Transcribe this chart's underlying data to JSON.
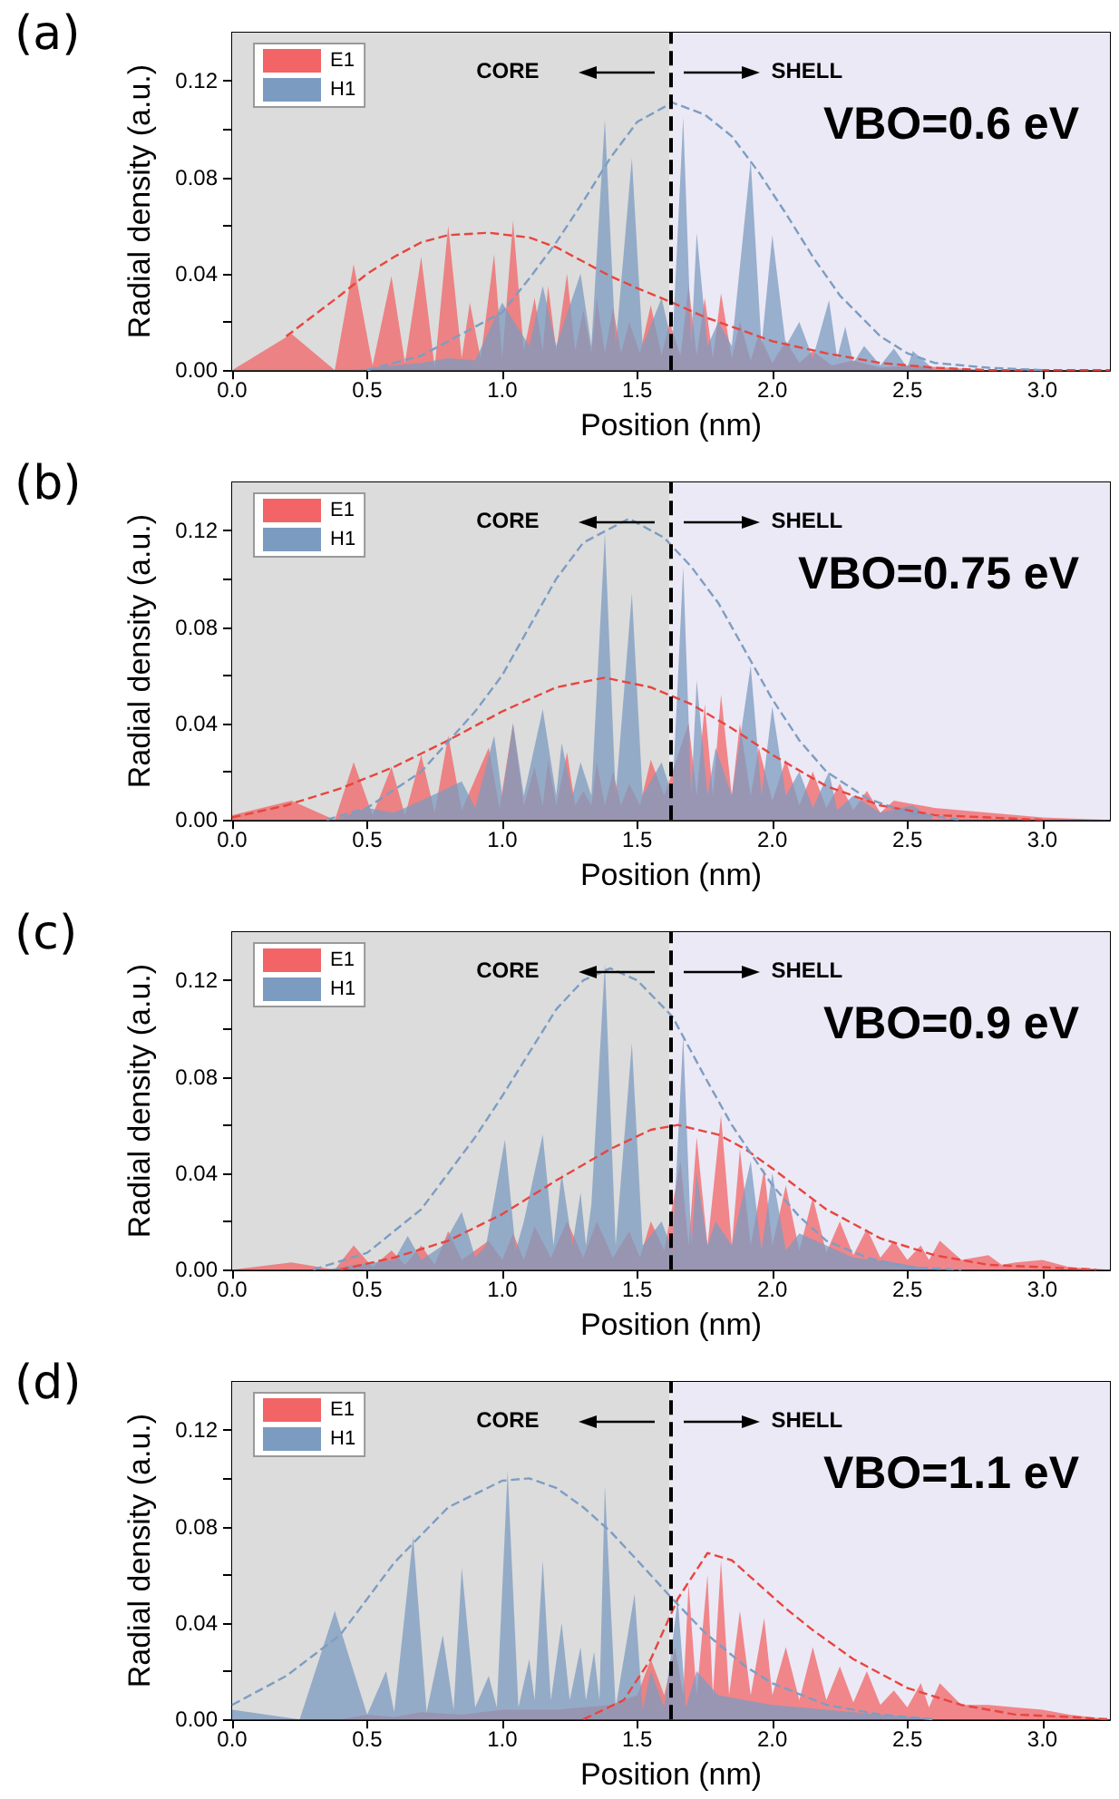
{
  "chart_data": [
    {
      "type": "area",
      "title": "(a)",
      "xlabel": "Position (nm)",
      "ylabel": "Radial density (a.u.)",
      "xlim": [
        0,
        3.25
      ],
      "xticks": [
        {
          "value": 0,
          "label": "0.0"
        },
        {
          "value": 0.5,
          "label": "0.5"
        },
        {
          "value": 1,
          "label": "1.0"
        },
        {
          "value": 1.5,
          "label": "1.5"
        },
        {
          "value": 2,
          "label": "2.0"
        },
        {
          "value": 2.5,
          "label": "2.5"
        },
        {
          "value": 3,
          "label": "3.0"
        }
      ],
      "ylim": [
        0,
        0.14
      ],
      "yticks": [
        {
          "value": 0,
          "label": "0.00"
        },
        {
          "value": 0.02,
          "label": null
        },
        {
          "value": 0.04,
          "label": "0.04"
        },
        {
          "value": 0.06,
          "label": null
        },
        {
          "value": 0.08,
          "label": "0.08"
        },
        {
          "value": 0.1,
          "label": null
        },
        {
          "value": 0.12,
          "label": "0.12"
        }
      ],
      "legend": "top left",
      "bands": [
        {
          "axis": "x",
          "from": 0,
          "to": 1.62,
          "color": "#dcdcdc"
        },
        {
          "axis": "x",
          "from": 1.62,
          "to": 3.25,
          "color": "#ebe9f5"
        }
      ],
      "ref_lines": [
        {
          "axis": "x",
          "value": 1.62,
          "color": "#000000",
          "line_style": "dashed"
        }
      ],
      "annotations": [
        "CORE",
        "SHELL",
        "VBO=0.6 eV"
      ],
      "series": [
        {
          "name": "E1",
          "color": "#f26466",
          "x": [
            0,
            0.22,
            0.38,
            0.45,
            0.52,
            0.59,
            0.64,
            0.7,
            0.75,
            0.8,
            0.85,
            0.88,
            0.92,
            0.97,
            1.0,
            1.04,
            1.08,
            1.12,
            1.15,
            1.17,
            1.2,
            1.24,
            1.27,
            1.3,
            1.33,
            1.35,
            1.38,
            1.41,
            1.44,
            1.47,
            1.51,
            1.55,
            1.59,
            1.62,
            1.66,
            1.69,
            1.72,
            1.75,
            1.78,
            1.81,
            1.85,
            1.88,
            1.92,
            1.95,
            2.0,
            2.05,
            2.1,
            2.15,
            2.22,
            2.3,
            2.4,
            2.5,
            2.65,
            2.8,
            3.25
          ],
          "values": [
            0,
            0.015,
            0,
            0.044,
            0.002,
            0.039,
            0.003,
            0.047,
            0.001,
            0.06,
            0.005,
            0.028,
            0.005,
            0.048,
            0.005,
            0.062,
            0.008,
            0.03,
            0.008,
            0.035,
            0.008,
            0.04,
            0.008,
            0.025,
            0.007,
            0.03,
            0.007,
            0.026,
            0.007,
            0.02,
            0.007,
            0.027,
            0.006,
            0.02,
            0.006,
            0.035,
            0.006,
            0.03,
            0.005,
            0.032,
            0.005,
            0.02,
            0.004,
            0.015,
            0.003,
            0.012,
            0.003,
            0.008,
            0.002,
            0.004,
            0.001,
            0.002,
            0.001,
            0,
            0
          ]
        },
        {
          "name": "H1",
          "color": "#7c9bc0",
          "x": [
            0,
            0.45,
            0.6,
            0.7,
            0.8,
            0.9,
            1.0,
            1.1,
            1.15,
            1.2,
            1.29,
            1.33,
            1.38,
            1.42,
            1.48,
            1.52,
            1.59,
            1.63,
            1.67,
            1.7,
            1.72,
            1.76,
            1.8,
            1.85,
            1.92,
            1.96,
            2.0,
            2.05,
            2.1,
            2.15,
            2.21,
            2.24,
            2.27,
            2.3,
            2.34,
            2.4,
            2.45,
            2.5,
            2.52,
            2.6,
            3.25
          ],
          "values": [
            0,
            0,
            0.002,
            0.003,
            0.005,
            0.004,
            0.028,
            0.01,
            0.035,
            0.01,
            0.04,
            0.01,
            0.104,
            0.01,
            0.088,
            0.01,
            0.03,
            0.01,
            0.105,
            0.01,
            0.057,
            0.01,
            0.02,
            0.01,
            0.087,
            0.01,
            0.056,
            0.01,
            0.02,
            0.005,
            0.029,
            0.005,
            0.018,
            0.003,
            0.01,
            0.002,
            0.009,
            0.001,
            0.008,
            0,
            0
          ]
        },
        {
          "type": "line",
          "color": "#e8453f",
          "line_style": "dashed",
          "x": [
            0.2,
            0.4,
            0.5,
            0.6,
            0.7,
            0.8,
            0.95,
            1.1,
            1.2,
            1.3,
            1.4,
            1.5,
            1.63,
            1.75,
            1.9,
            2.0,
            2.2,
            2.4,
            2.6,
            2.8,
            3.25
          ],
          "values": [
            0.014,
            0.031,
            0.04,
            0.047,
            0.053,
            0.056,
            0.057,
            0.055,
            0.051,
            0.045,
            0.039,
            0.034,
            0.028,
            0.022,
            0.016,
            0.012,
            0.007,
            0.003,
            0.001,
            0,
            0
          ]
        },
        {
          "type": "line",
          "color": "#7d9dc3",
          "line_style": "dashed",
          "x": [
            0.5,
            0.7,
            0.9,
            1.0,
            1.1,
            1.2,
            1.3,
            1.4,
            1.5,
            1.63,
            1.75,
            1.85,
            1.95,
            2.05,
            2.15,
            2.25,
            2.4,
            2.5,
            2.6,
            2.8,
            3.0
          ],
          "values": [
            0,
            0.006,
            0.018,
            0.024,
            0.038,
            0.053,
            0.07,
            0.088,
            0.103,
            0.111,
            0.106,
            0.097,
            0.082,
            0.065,
            0.047,
            0.031,
            0.014,
            0.007,
            0.003,
            0.001,
            0
          ]
        }
      ]
    },
    {
      "type": "area",
      "title": "(b)",
      "xlabel": "Position (nm)",
      "ylabel": "Radial density (a.u.)",
      "xlim": [
        0,
        3.25
      ],
      "xticks": [
        {
          "value": 0,
          "label": "0.0"
        },
        {
          "value": 0.5,
          "label": "0.5"
        },
        {
          "value": 1,
          "label": "1.0"
        },
        {
          "value": 1.5,
          "label": "1.5"
        },
        {
          "value": 2,
          "label": "2.0"
        },
        {
          "value": 2.5,
          "label": "2.5"
        },
        {
          "value": 3,
          "label": "3.0"
        }
      ],
      "ylim": [
        0,
        0.14
      ],
      "yticks": [
        {
          "value": 0,
          "label": "0.00"
        },
        {
          "value": 0.02,
          "label": null
        },
        {
          "value": 0.04,
          "label": "0.04"
        },
        {
          "value": 0.06,
          "label": null
        },
        {
          "value": 0.08,
          "label": "0.08"
        },
        {
          "value": 0.1,
          "label": null
        },
        {
          "value": 0.12,
          "label": "0.12"
        }
      ],
      "legend": "top left",
      "bands": [
        {
          "axis": "x",
          "from": 0,
          "to": 1.62,
          "color": "#dcdcdc"
        },
        {
          "axis": "x",
          "from": 1.62,
          "to": 3.25,
          "color": "#ebe9f5"
        }
      ],
      "ref_lines": [
        {
          "axis": "x",
          "value": 1.62,
          "color": "#000000",
          "line_style": "dashed"
        }
      ],
      "annotations": [
        "CORE",
        "SHELL",
        "VBO=0.75 eV"
      ],
      "series": [
        {
          "name": "E1",
          "color": "#f26466",
          "x": [
            0,
            0.22,
            0.38,
            0.45,
            0.52,
            0.59,
            0.64,
            0.7,
            0.75,
            0.8,
            0.85,
            0.95,
            0.99,
            1.04,
            1.08,
            1.12,
            1.15,
            1.17,
            1.2,
            1.24,
            1.27,
            1.3,
            1.33,
            1.35,
            1.38,
            1.41,
            1.44,
            1.47,
            1.51,
            1.55,
            1.6,
            1.69,
            1.72,
            1.75,
            1.78,
            1.81,
            1.85,
            1.88,
            1.92,
            1.95,
            2.0,
            2.05,
            2.1,
            2.15,
            2.2,
            2.25,
            2.3,
            2.35,
            2.4,
            2.45,
            2.6,
            2.8,
            3.0,
            3.25
          ],
          "values": [
            0.002,
            0.008,
            0,
            0.024,
            0.002,
            0.022,
            0.002,
            0.027,
            0.003,
            0.035,
            0.004,
            0.03,
            0.005,
            0.04,
            0.006,
            0.022,
            0.006,
            0.025,
            0.006,
            0.028,
            0.006,
            0.012,
            0.006,
            0.024,
            0.006,
            0.02,
            0.006,
            0.015,
            0.006,
            0.025,
            0.01,
            0.04,
            0.01,
            0.048,
            0.01,
            0.052,
            0.01,
            0.04,
            0.01,
            0.03,
            0.008,
            0.025,
            0.006,
            0.02,
            0.005,
            0.015,
            0.004,
            0.012,
            0.003,
            0.008,
            0.005,
            0.003,
            0.001,
            0
          ]
        },
        {
          "name": "H1",
          "color": "#7c9bc0",
          "x": [
            0,
            0.38,
            0.5,
            0.6,
            0.7,
            0.85,
            0.9,
            0.97,
            1.0,
            1.04,
            1.08,
            1.15,
            1.2,
            1.22,
            1.26,
            1.29,
            1.33,
            1.38,
            1.42,
            1.48,
            1.52,
            1.59,
            1.63,
            1.67,
            1.7,
            1.72,
            1.76,
            1.79,
            1.85,
            1.92,
            1.96,
            2.0,
            2.05,
            2.1,
            2.15,
            2.21,
            2.24,
            2.3,
            2.4,
            2.52,
            2.6,
            3.25
          ],
          "values": [
            0,
            0,
            0.005,
            0.003,
            0.008,
            0.016,
            0.005,
            0.035,
            0.01,
            0.04,
            0.01,
            0.046,
            0.01,
            0.032,
            0.01,
            0.024,
            0.01,
            0.119,
            0.01,
            0.094,
            0.01,
            0.024,
            0.01,
            0.105,
            0.01,
            0.058,
            0.01,
            0.03,
            0.01,
            0.064,
            0.01,
            0.047,
            0.01,
            0.02,
            0.005,
            0.02,
            0.004,
            0.01,
            0.003,
            0.006,
            0,
            0
          ]
        },
        {
          "type": "line",
          "color": "#e8453f",
          "line_style": "dashed",
          "x": [
            0,
            0.2,
            0.4,
            0.6,
            0.8,
            1.0,
            1.2,
            1.38,
            1.55,
            1.7,
            1.85,
            2.0,
            2.2,
            2.4,
            2.6,
            2.8,
            3.0
          ],
          "values": [
            0.001,
            0.006,
            0.013,
            0.022,
            0.033,
            0.045,
            0.055,
            0.059,
            0.055,
            0.048,
            0.038,
            0.027,
            0.014,
            0.006,
            0.002,
            0.001,
            0
          ]
        },
        {
          "type": "line",
          "color": "#7d9dc3",
          "line_style": "dashed",
          "x": [
            0.35,
            0.5,
            0.7,
            0.9,
            1.0,
            1.1,
            1.2,
            1.3,
            1.47,
            1.6,
            1.7,
            1.8,
            1.9,
            2.0,
            2.1,
            2.2,
            2.35,
            2.5,
            2.7
          ],
          "values": [
            0,
            0.005,
            0.02,
            0.045,
            0.06,
            0.08,
            0.1,
            0.115,
            0.125,
            0.117,
            0.105,
            0.09,
            0.07,
            0.05,
            0.033,
            0.02,
            0.009,
            0.003,
            0
          ]
        }
      ]
    },
    {
      "type": "area",
      "title": "(c)",
      "xlabel": "Position (nm)",
      "ylabel": "Radial density (a.u.)",
      "xlim": [
        0,
        3.25
      ],
      "xticks": [
        {
          "value": 0,
          "label": "0.0"
        },
        {
          "value": 0.5,
          "label": "0.5"
        },
        {
          "value": 1,
          "label": "1.0"
        },
        {
          "value": 1.5,
          "label": "1.5"
        },
        {
          "value": 2,
          "label": "2.0"
        },
        {
          "value": 2.5,
          "label": "2.5"
        },
        {
          "value": 3,
          "label": "3.0"
        }
      ],
      "ylim": [
        0,
        0.14
      ],
      "yticks": [
        {
          "value": 0,
          "label": "0.00"
        },
        {
          "value": 0.02,
          "label": null
        },
        {
          "value": 0.04,
          "label": "0.04"
        },
        {
          "value": 0.06,
          "label": null
        },
        {
          "value": 0.08,
          "label": "0.08"
        },
        {
          "value": 0.1,
          "label": null
        },
        {
          "value": 0.12,
          "label": "0.12"
        }
      ],
      "legend": "top left",
      "bands": [
        {
          "axis": "x",
          "from": 0,
          "to": 1.62,
          "color": "#dcdcdc"
        },
        {
          "axis": "x",
          "from": 1.62,
          "to": 3.25,
          "color": "#ebe9f5"
        }
      ],
      "ref_lines": [
        {
          "axis": "x",
          "value": 1.62,
          "color": "#000000",
          "line_style": "dashed"
        }
      ],
      "annotations": [
        "CORE",
        "SHELL",
        "VBO=0.9 eV"
      ],
      "series": [
        {
          "name": "E1",
          "color": "#f26466",
          "x": [
            0,
            0.22,
            0.38,
            0.45,
            0.52,
            0.59,
            0.64,
            0.7,
            0.75,
            0.8,
            0.85,
            0.95,
            1.0,
            1.04,
            1.08,
            1.12,
            1.18,
            1.24,
            1.3,
            1.35,
            1.41,
            1.47,
            1.51,
            1.55,
            1.6,
            1.66,
            1.69,
            1.72,
            1.76,
            1.81,
            1.85,
            1.88,
            1.92,
            1.97,
            2.0,
            2.05,
            2.1,
            2.15,
            2.2,
            2.25,
            2.3,
            2.35,
            2.4,
            2.45,
            2.5,
            2.55,
            2.58,
            2.62,
            2.7,
            2.8,
            2.85,
            2.9,
            3.0,
            3.1,
            3.25
          ],
          "values": [
            0,
            0.003,
            0,
            0.01,
            0.001,
            0.008,
            0.002,
            0.01,
            0.002,
            0.016,
            0.004,
            0.012,
            0.004,
            0.015,
            0.004,
            0.018,
            0.005,
            0.02,
            0.005,
            0.02,
            0.005,
            0.016,
            0.005,
            0.02,
            0.008,
            0.045,
            0.01,
            0.055,
            0.01,
            0.064,
            0.01,
            0.05,
            0.01,
            0.042,
            0.01,
            0.035,
            0.008,
            0.03,
            0.007,
            0.02,
            0.006,
            0.017,
            0.005,
            0.012,
            0.004,
            0.01,
            0.004,
            0.012,
            0.004,
            0.006,
            0.002,
            0.003,
            0.004,
            0.001,
            0
          ]
        },
        {
          "name": "H1",
          "color": "#7c9bc0",
          "x": [
            0,
            0.35,
            0.45,
            0.6,
            0.65,
            0.7,
            0.78,
            0.85,
            0.9,
            0.94,
            1.01,
            1.05,
            1.08,
            1.15,
            1.19,
            1.22,
            1.26,
            1.29,
            1.31,
            1.33,
            1.38,
            1.42,
            1.48,
            1.52,
            1.59,
            1.63,
            1.67,
            1.7,
            1.72,
            1.76,
            1.79,
            1.85,
            1.92,
            1.96,
            2.0,
            2.05,
            2.1,
            2.2,
            2.3,
            2.45,
            2.6,
            3.25
          ],
          "values": [
            0,
            0,
            0.002,
            0.004,
            0.014,
            0.004,
            0.01,
            0.024,
            0.005,
            0.01,
            0.054,
            0.008,
            0.02,
            0.056,
            0.01,
            0.04,
            0.01,
            0.032,
            0.01,
            0.027,
            0.127,
            0.01,
            0.094,
            0.01,
            0.02,
            0.008,
            0.097,
            0.01,
            0.04,
            0.01,
            0.02,
            0.01,
            0.045,
            0.008,
            0.04,
            0.008,
            0.015,
            0.01,
            0.005,
            0.003,
            0,
            0
          ]
        },
        {
          "type": "line",
          "color": "#e8453f",
          "line_style": "dashed",
          "x": [
            0.4,
            0.6,
            0.8,
            1.0,
            1.2,
            1.4,
            1.55,
            1.65,
            1.8,
            1.9,
            2.0,
            2.2,
            2.4,
            2.6,
            2.8,
            3.0,
            3.2
          ],
          "values": [
            0,
            0.005,
            0.012,
            0.023,
            0.037,
            0.05,
            0.058,
            0.06,
            0.056,
            0.05,
            0.042,
            0.025,
            0.013,
            0.006,
            0.002,
            0.001,
            0
          ]
        },
        {
          "type": "line",
          "color": "#7d9dc3",
          "line_style": "dashed",
          "x": [
            0.3,
            0.5,
            0.7,
            0.9,
            1.0,
            1.1,
            1.2,
            1.3,
            1.4,
            1.5,
            1.63,
            1.75,
            1.85,
            2.0,
            2.1,
            2.2,
            2.35,
            2.5,
            2.7
          ],
          "values": [
            0,
            0.007,
            0.025,
            0.055,
            0.072,
            0.09,
            0.108,
            0.12,
            0.125,
            0.12,
            0.105,
            0.08,
            0.06,
            0.035,
            0.022,
            0.012,
            0.005,
            0.001,
            0
          ]
        }
      ]
    },
    {
      "type": "area",
      "title": "(d)",
      "xlabel": "Position (nm)",
      "ylabel": "Radial density (a.u.)",
      "xlim": [
        0,
        3.25
      ],
      "xticks": [
        {
          "value": 0,
          "label": "0.0"
        },
        {
          "value": 0.5,
          "label": "0.5"
        },
        {
          "value": 1,
          "label": "1.0"
        },
        {
          "value": 1.5,
          "label": "1.5"
        },
        {
          "value": 2,
          "label": "2.0"
        },
        {
          "value": 2.5,
          "label": "2.5"
        },
        {
          "value": 3,
          "label": "3.0"
        }
      ],
      "ylim": [
        0,
        0.14
      ],
      "yticks": [
        {
          "value": 0,
          "label": "0.00"
        },
        {
          "value": 0.02,
          "label": null
        },
        {
          "value": 0.04,
          "label": "0.04"
        },
        {
          "value": 0.06,
          "label": null
        },
        {
          "value": 0.08,
          "label": "0.08"
        },
        {
          "value": 0.1,
          "label": null
        },
        {
          "value": 0.12,
          "label": "0.12"
        }
      ],
      "legend": "top left",
      "bands": [
        {
          "axis": "x",
          "from": 0,
          "to": 1.62,
          "color": "#dcdcdc"
        },
        {
          "axis": "x",
          "from": 1.62,
          "to": 3.25,
          "color": "#ebe9f5"
        }
      ],
      "ref_lines": [
        {
          "axis": "x",
          "value": 1.62,
          "color": "#000000",
          "line_style": "dashed"
        }
      ],
      "annotations": [
        "CORE",
        "SHELL",
        "VBO=1.1 eV"
      ],
      "series": [
        {
          "name": "E1",
          "color": "#f26466",
          "x": [
            0,
            0.4,
            0.5,
            0.6,
            0.7,
            0.85,
            1.0,
            1.2,
            1.4,
            1.5,
            1.55,
            1.6,
            1.64,
            1.67,
            1.69,
            1.72,
            1.76,
            1.78,
            1.81,
            1.84,
            1.88,
            1.92,
            1.97,
            2.0,
            2.05,
            2.1,
            2.15,
            2.2,
            2.25,
            2.3,
            2.35,
            2.4,
            2.45,
            2.5,
            2.55,
            2.58,
            2.62,
            2.7,
            2.8,
            2.9,
            3.0,
            3.1,
            3.25
          ],
          "values": [
            0,
            0,
            0.002,
            0.001,
            0.003,
            0.002,
            0.004,
            0.004,
            0.006,
            0.01,
            0.025,
            0.01,
            0.03,
            0.01,
            0.056,
            0.01,
            0.06,
            0.01,
            0.066,
            0.01,
            0.045,
            0.01,
            0.042,
            0.01,
            0.03,
            0.008,
            0.03,
            0.008,
            0.022,
            0.007,
            0.02,
            0.006,
            0.012,
            0.005,
            0.015,
            0.005,
            0.015,
            0.006,
            0.006,
            0.005,
            0.004,
            0.002,
            0
          ]
        },
        {
          "name": "H1",
          "color": "#7c9bc0",
          "x": [
            0,
            0.25,
            0.38,
            0.5,
            0.57,
            0.6,
            0.67,
            0.72,
            0.78,
            0.82,
            0.85,
            0.9,
            0.95,
            0.98,
            1.02,
            1.06,
            1.1,
            1.12,
            1.15,
            1.18,
            1.22,
            1.25,
            1.29,
            1.31,
            1.34,
            1.36,
            1.38,
            1.42,
            1.49,
            1.52,
            1.55,
            1.6,
            1.65,
            1.68,
            1.72,
            1.8,
            1.9,
            2.0,
            2.2,
            2.4,
            2.6,
            3.25
          ],
          "values": [
            0.004,
            0,
            0.045,
            0.002,
            0.02,
            0.003,
            0.076,
            0.003,
            0.035,
            0.004,
            0.063,
            0.005,
            0.018,
            0.005,
            0.103,
            0.005,
            0.025,
            0.008,
            0.066,
            0.008,
            0.04,
            0.008,
            0.03,
            0.008,
            0.028,
            0.008,
            0.097,
            0.005,
            0.052,
            0.004,
            0.02,
            0.005,
            0.05,
            0.005,
            0.02,
            0.01,
            0.008,
            0.006,
            0.004,
            0.002,
            0,
            0
          ]
        },
        {
          "type": "line",
          "color": "#e8453f",
          "line_style": "dashed",
          "x": [
            1.3,
            1.45,
            1.55,
            1.65,
            1.76,
            1.85,
            1.95,
            2.05,
            2.15,
            2.3,
            2.5,
            2.7,
            2.9,
            3.1,
            3.25
          ],
          "values": [
            0,
            0.008,
            0.025,
            0.05,
            0.069,
            0.066,
            0.056,
            0.046,
            0.037,
            0.025,
            0.013,
            0.006,
            0.002,
            0.001,
            0
          ]
        },
        {
          "type": "line",
          "color": "#7d9dc3",
          "line_style": "dashed",
          "x": [
            0,
            0.2,
            0.4,
            0.6,
            0.8,
            1.0,
            1.1,
            1.2,
            1.3,
            1.4,
            1.5,
            1.63,
            1.75,
            1.9,
            2.0,
            2.2,
            2.4,
            2.6
          ],
          "values": [
            0.006,
            0.018,
            0.035,
            0.065,
            0.088,
            0.099,
            0.1,
            0.096,
            0.088,
            0.078,
            0.066,
            0.05,
            0.036,
            0.022,
            0.015,
            0.006,
            0.002,
            0
          ]
        }
      ]
    }
  ]
}
